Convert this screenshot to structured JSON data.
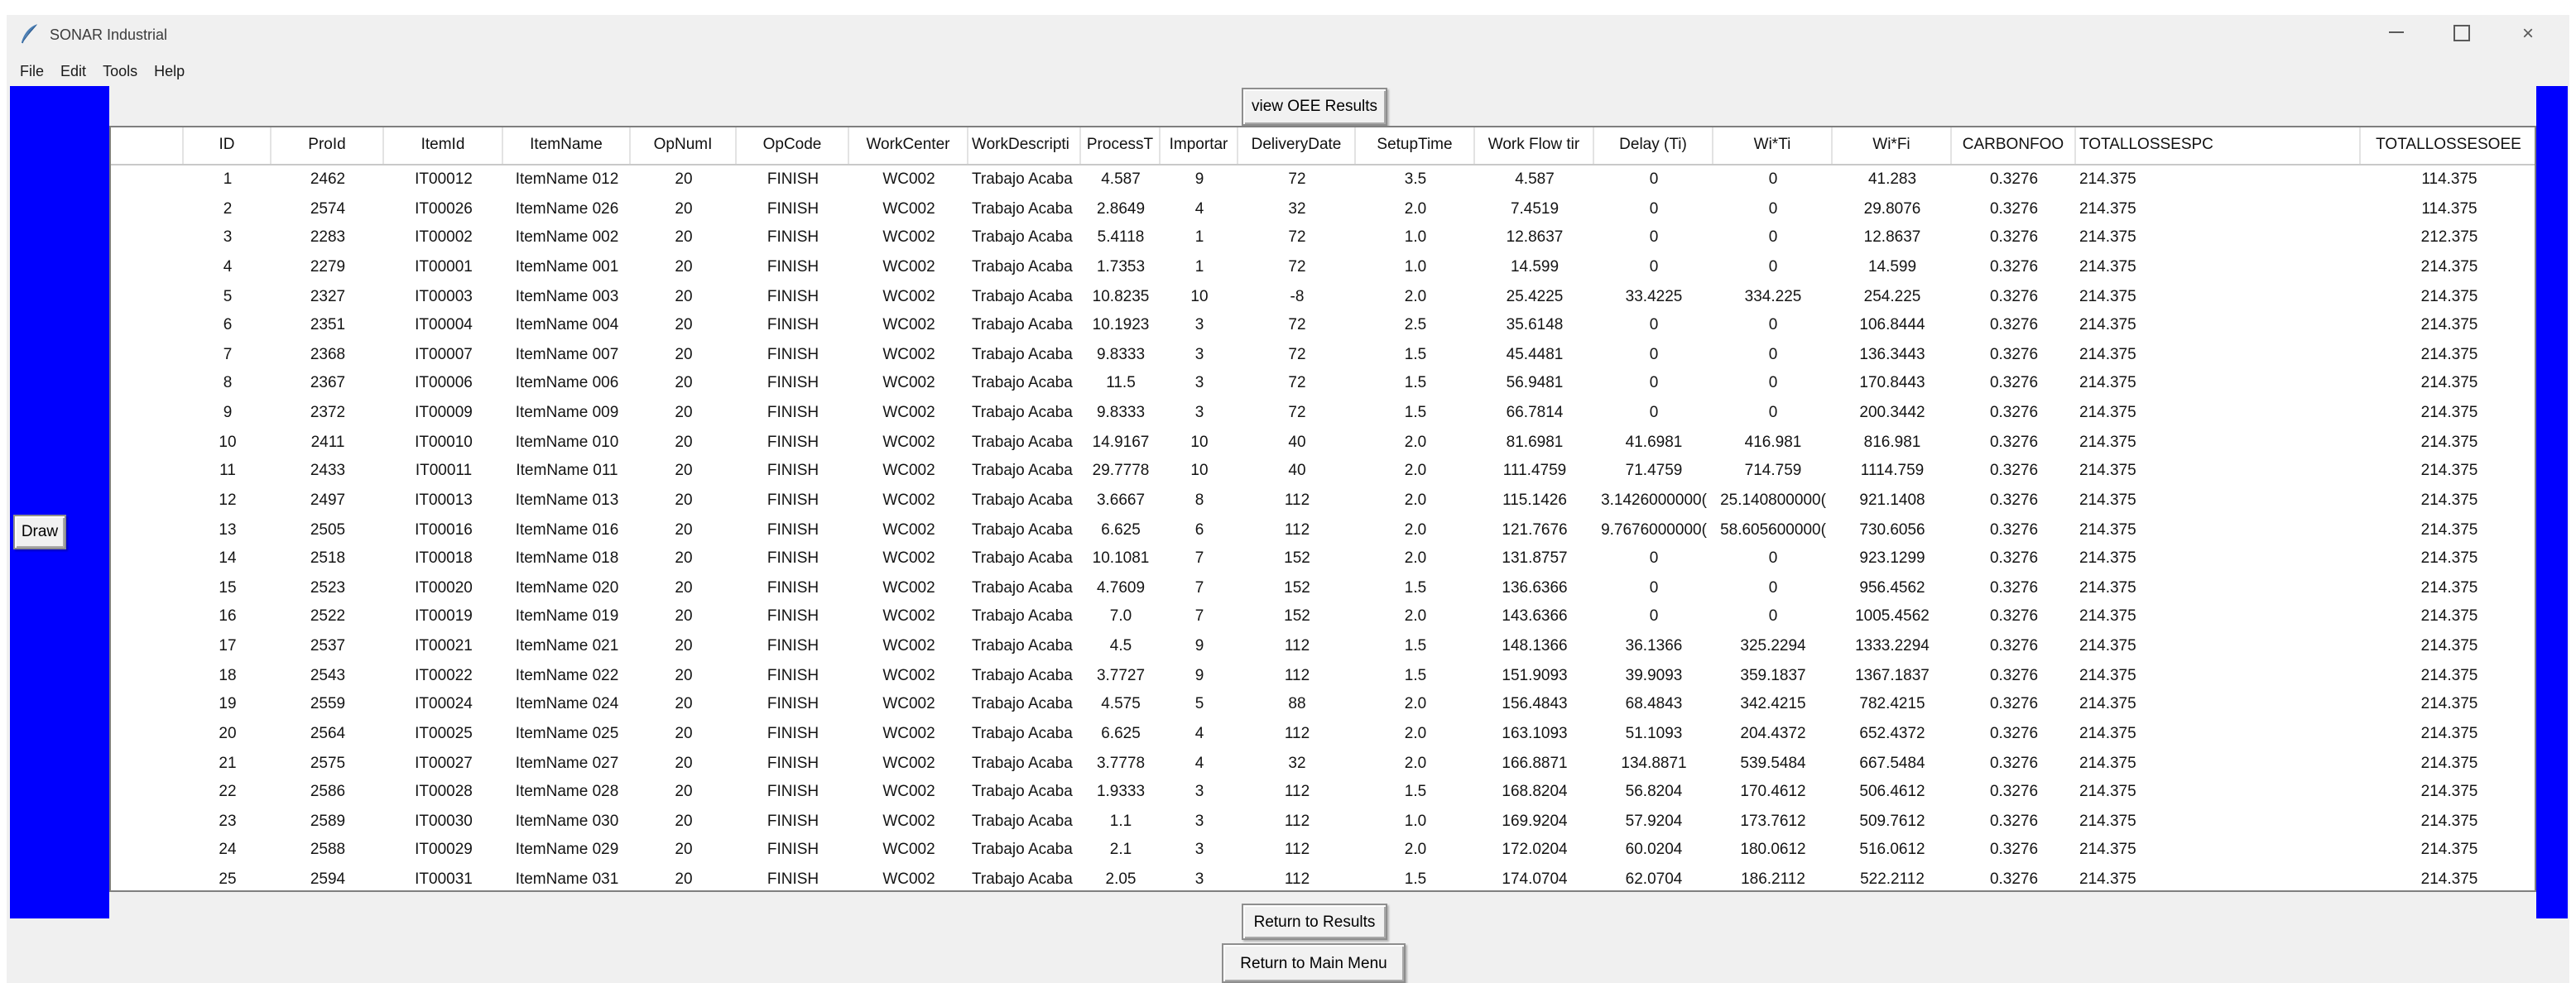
{
  "window": {
    "title": "SONAR Industrial"
  },
  "menu": {
    "items": [
      "File",
      "Edit",
      "Tools",
      "Help"
    ]
  },
  "toolbar": {
    "view_oee_label": "view OEE Results"
  },
  "side_panel": {
    "draw_label": "Draw"
  },
  "footer": {
    "return_results_label": "Return to Results",
    "return_main_label": "Return to Main Menu"
  },
  "colors": {
    "panel_blue": "#0000fe",
    "window_gray": "#f0f0f0",
    "table_bg": "#ffffff"
  },
  "table": {
    "columns": [
      "ID",
      "ProId",
      "ItemId",
      "ItemName",
      "OpNumI",
      "OpCode",
      "WorkCenter",
      "WorkDescripti",
      "ProcessT",
      "Importar",
      "DeliveryDate",
      "SetupTime",
      "Work Flow tir",
      "Delay (Ti)",
      "Wi*Ti",
      "Wi*Fi",
      "CARBONFOO",
      "TOTALLOSSESPC",
      "TOTALLOSSESOEE"
    ],
    "rows": [
      [
        "1",
        "2462",
        "IT00012",
        "ItemName 012",
        "20",
        "FINISH",
        "WC002",
        "Trabajo Acaba",
        "4.587",
        "9",
        "72",
        "3.5",
        "4.587",
        "0",
        "0",
        "41.283",
        "0.3276",
        "214.375",
        "114.375"
      ],
      [
        "2",
        "2574",
        "IT00026",
        "ItemName 026",
        "20",
        "FINISH",
        "WC002",
        "Trabajo Acaba",
        "2.8649",
        "4",
        "32",
        "2.0",
        "7.4519",
        "0",
        "0",
        "29.8076",
        "0.3276",
        "214.375",
        "114.375"
      ],
      [
        "3",
        "2283",
        "IT00002",
        "ItemName 002",
        "20",
        "FINISH",
        "WC002",
        "Trabajo Acaba",
        "5.4118",
        "1",
        "72",
        "1.0",
        "12.8637",
        "0",
        "0",
        "12.8637",
        "0.3276",
        "214.375",
        "212.375"
      ],
      [
        "4",
        "2279",
        "IT00001",
        "ItemName 001",
        "20",
        "FINISH",
        "WC002",
        "Trabajo Acaba",
        "1.7353",
        "1",
        "72",
        "1.0",
        "14.599",
        "0",
        "0",
        "14.599",
        "0.3276",
        "214.375",
        "214.375"
      ],
      [
        "5",
        "2327",
        "IT00003",
        "ItemName 003",
        "20",
        "FINISH",
        "WC002",
        "Trabajo Acaba",
        "10.8235",
        "10",
        "-8",
        "2.0",
        "25.4225",
        "33.4225",
        "334.225",
        "254.225",
        "0.3276",
        "214.375",
        "214.375"
      ],
      [
        "6",
        "2351",
        "IT00004",
        "ItemName 004",
        "20",
        "FINISH",
        "WC002",
        "Trabajo Acaba",
        "10.1923",
        "3",
        "72",
        "2.5",
        "35.6148",
        "0",
        "0",
        "106.8444",
        "0.3276",
        "214.375",
        "214.375"
      ],
      [
        "7",
        "2368",
        "IT00007",
        "ItemName 007",
        "20",
        "FINISH",
        "WC002",
        "Trabajo Acaba",
        "9.8333",
        "3",
        "72",
        "1.5",
        "45.4481",
        "0",
        "0",
        "136.3443",
        "0.3276",
        "214.375",
        "214.375"
      ],
      [
        "8",
        "2367",
        "IT00006",
        "ItemName 006",
        "20",
        "FINISH",
        "WC002",
        "Trabajo Acaba",
        "11.5",
        "3",
        "72",
        "1.5",
        "56.9481",
        "0",
        "0",
        "170.8443",
        "0.3276",
        "214.375",
        "214.375"
      ],
      [
        "9",
        "2372",
        "IT00009",
        "ItemName 009",
        "20",
        "FINISH",
        "WC002",
        "Trabajo Acaba",
        "9.8333",
        "3",
        "72",
        "1.5",
        "66.7814",
        "0",
        "0",
        "200.3442",
        "0.3276",
        "214.375",
        "214.375"
      ],
      [
        "10",
        "2411",
        "IT00010",
        "ItemName 010",
        "20",
        "FINISH",
        "WC002",
        "Trabajo Acaba",
        "14.9167",
        "10",
        "40",
        "2.0",
        "81.6981",
        "41.6981",
        "416.981",
        "816.981",
        "0.3276",
        "214.375",
        "214.375"
      ],
      [
        "11",
        "2433",
        "IT00011",
        "ItemName 011",
        "20",
        "FINISH",
        "WC002",
        "Trabajo Acaba",
        "29.7778",
        "10",
        "40",
        "2.0",
        "111.4759",
        "71.4759",
        "714.759",
        "1114.759",
        "0.3276",
        "214.375",
        "214.375"
      ],
      [
        "12",
        "2497",
        "IT00013",
        "ItemName 013",
        "20",
        "FINISH",
        "WC002",
        "Trabajo Acaba",
        "3.6667",
        "8",
        "112",
        "2.0",
        "115.1426",
        "3.1426000000(",
        "25.140800000(",
        "921.1408",
        "0.3276",
        "214.375",
        "214.375"
      ],
      [
        "13",
        "2505",
        "IT00016",
        "ItemName 016",
        "20",
        "FINISH",
        "WC002",
        "Trabajo Acaba",
        "6.625",
        "6",
        "112",
        "2.0",
        "121.7676",
        "9.7676000000(",
        "58.605600000(",
        "730.6056",
        "0.3276",
        "214.375",
        "214.375"
      ],
      [
        "14",
        "2518",
        "IT00018",
        "ItemName 018",
        "20",
        "FINISH",
        "WC002",
        "Trabajo Acaba",
        "10.1081",
        "7",
        "152",
        "2.0",
        "131.8757",
        "0",
        "0",
        "923.1299",
        "0.3276",
        "214.375",
        "214.375"
      ],
      [
        "15",
        "2523",
        "IT00020",
        "ItemName 020",
        "20",
        "FINISH",
        "WC002",
        "Trabajo Acaba",
        "4.7609",
        "7",
        "152",
        "1.5",
        "136.6366",
        "0",
        "0",
        "956.4562",
        "0.3276",
        "214.375",
        "214.375"
      ],
      [
        "16",
        "2522",
        "IT00019",
        "ItemName 019",
        "20",
        "FINISH",
        "WC002",
        "Trabajo Acaba",
        "7.0",
        "7",
        "152",
        "2.0",
        "143.6366",
        "0",
        "0",
        "1005.4562",
        "0.3276",
        "214.375",
        "214.375"
      ],
      [
        "17",
        "2537",
        "IT00021",
        "ItemName 021",
        "20",
        "FINISH",
        "WC002",
        "Trabajo Acaba",
        "4.5",
        "9",
        "112",
        "1.5",
        "148.1366",
        "36.1366",
        "325.2294",
        "1333.2294",
        "0.3276",
        "214.375",
        "214.375"
      ],
      [
        "18",
        "2543",
        "IT00022",
        "ItemName 022",
        "20",
        "FINISH",
        "WC002",
        "Trabajo Acaba",
        "3.7727",
        "9",
        "112",
        "1.5",
        "151.9093",
        "39.9093",
        "359.1837",
        "1367.1837",
        "0.3276",
        "214.375",
        "214.375"
      ],
      [
        "19",
        "2559",
        "IT00024",
        "ItemName 024",
        "20",
        "FINISH",
        "WC002",
        "Trabajo Acaba",
        "4.575",
        "5",
        "88",
        "2.0",
        "156.4843",
        "68.4843",
        "342.4215",
        "782.4215",
        "0.3276",
        "214.375",
        "214.375"
      ],
      [
        "20",
        "2564",
        "IT00025",
        "ItemName 025",
        "20",
        "FINISH",
        "WC002",
        "Trabajo Acaba",
        "6.625",
        "4",
        "112",
        "2.0",
        "163.1093",
        "51.1093",
        "204.4372",
        "652.4372",
        "0.3276",
        "214.375",
        "214.375"
      ],
      [
        "21",
        "2575",
        "IT00027",
        "ItemName 027",
        "20",
        "FINISH",
        "WC002",
        "Trabajo Acaba",
        "3.7778",
        "4",
        "32",
        "2.0",
        "166.8871",
        "134.8871",
        "539.5484",
        "667.5484",
        "0.3276",
        "214.375",
        "214.375"
      ],
      [
        "22",
        "2586",
        "IT00028",
        "ItemName 028",
        "20",
        "FINISH",
        "WC002",
        "Trabajo Acaba",
        "1.9333",
        "3",
        "112",
        "1.5",
        "168.8204",
        "56.8204",
        "170.4612",
        "506.4612",
        "0.3276",
        "214.375",
        "214.375"
      ],
      [
        "23",
        "2589",
        "IT00030",
        "ItemName 030",
        "20",
        "FINISH",
        "WC002",
        "Trabajo Acaba",
        "1.1",
        "3",
        "112",
        "1.0",
        "169.9204",
        "57.9204",
        "173.7612",
        "509.7612",
        "0.3276",
        "214.375",
        "214.375"
      ],
      [
        "24",
        "2588",
        "IT00029",
        "ItemName 029",
        "20",
        "FINISH",
        "WC002",
        "Trabajo Acaba",
        "2.1",
        "3",
        "112",
        "2.0",
        "172.0204",
        "60.0204",
        "180.0612",
        "516.0612",
        "0.3276",
        "214.375",
        "214.375"
      ],
      [
        "25",
        "2594",
        "IT00031",
        "ItemName 031",
        "20",
        "FINISH",
        "WC002",
        "Trabajo Acaba",
        "2.05",
        "3",
        "112",
        "1.5",
        "174.0704",
        "62.0704",
        "186.2112",
        "522.2112",
        "0.3276",
        "214.375",
        "214.375"
      ]
    ]
  }
}
